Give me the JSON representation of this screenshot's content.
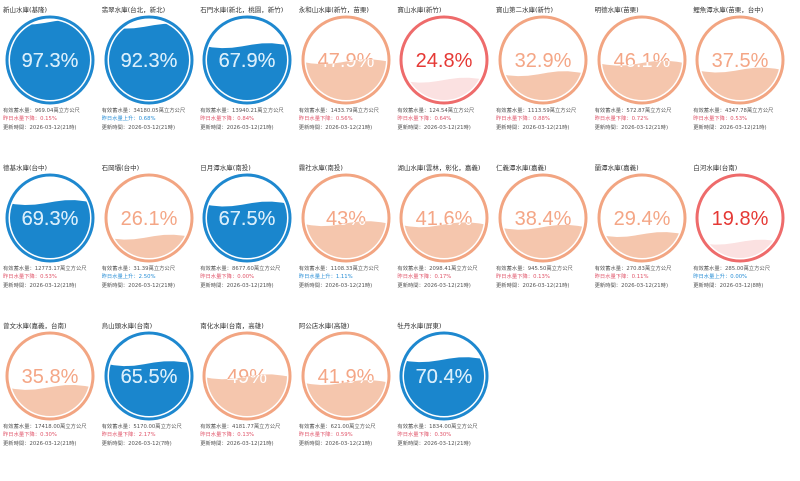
{
  "reservoirs": [
    {
      "name": "新山水庫(基隆)",
      "percent": 97.3,
      "label": "97.3%",
      "storage": "有效蓄水量：969.04萬立方公尺",
      "change": "昨日水量下降：0.15%",
      "updated": "更新時間：2026-03-12(21時)",
      "level": "blue",
      "change_dir": "down"
    },
    {
      "name": "翡翠水庫(台北，新北)",
      "percent": 92.3,
      "label": "92.3%",
      "storage": "有效蓄水量：34180.05萬立方公尺",
      "change": "昨日水量上升：0.68%",
      "updated": "更新時間：2026-03-12(21時)",
      "level": "blue",
      "change_dir": "up"
    },
    {
      "name": "石門水庫(新北，桃園，新竹)",
      "percent": 67.9,
      "label": "67.9%",
      "storage": "有效蓄水量：13940.21萬立方公尺",
      "change": "昨日水量下降：0.84%",
      "updated": "更新時間：2026-03-12(21時)",
      "level": "blue",
      "change_dir": "down"
    },
    {
      "name": "永和山水庫(新竹，苗栗)",
      "percent": 47.9,
      "label": "47.9%",
      "storage": "有效蓄水量：1433.79萬立方公尺",
      "change": "昨日水量下降：0.56%",
      "updated": "更新時間：2026-03-12(21時)",
      "level": "orange",
      "change_dir": "down"
    },
    {
      "name": "寶山水庫(新竹)",
      "percent": 24.8,
      "label": "24.8%",
      "storage": "有效蓄水量：124.54萬立方公尺",
      "change": "昨日水量下降：0.64%",
      "updated": "更新時間：2026-03-12(21時)",
      "level": "red",
      "change_dir": "down"
    },
    {
      "name": "寶山第二水庫(新竹)",
      "percent": 32.9,
      "label": "32.9%",
      "storage": "有效蓄水量：1113.59萬立方公尺",
      "change": "昨日水量下降：0.88%",
      "updated": "更新時間：2026-03-12(21時)",
      "level": "orange",
      "change_dir": "down"
    },
    {
      "name": "明德水庫(苗栗)",
      "percent": 46.1,
      "label": "46.1%",
      "storage": "有效蓄水量：572.87萬立方公尺",
      "change": "昨日水量下降：0.72%",
      "updated": "更新時間：2026-03-12(21時)",
      "level": "orange",
      "change_dir": "down"
    },
    {
      "name": "鯉魚潭水庫(苗栗，台中)",
      "percent": 37.5,
      "label": "37.5%",
      "storage": "有效蓄水量：4347.78萬立方公尺",
      "change": "昨日水量下降：0.53%",
      "updated": "更新時間：2026-03-12(21時)",
      "level": "orange",
      "change_dir": "down"
    },
    {
      "name": "德基水庫(台中)",
      "percent": 69.3,
      "label": "69.3%",
      "storage": "有效蓄水量：12773.17萬立方公尺",
      "change": "昨日水量下降：0.53%",
      "updated": "更新時間：2026-03-12(21時)",
      "level": "blue",
      "change_dir": "down"
    },
    {
      "name": "石岡壩(台中)",
      "percent": 26.1,
      "label": "26.1%",
      "storage": "有效蓄水量：31.39萬立方公尺",
      "change": "昨日水量上升：2.50%",
      "updated": "更新時間：2026-03-12(21時)",
      "level": "orange",
      "change_dir": "up"
    },
    {
      "name": "日月潭水庫(南投)",
      "percent": 67.5,
      "label": "67.5%",
      "storage": "有效蓄水量：8677.60萬立方公尺",
      "change": "昨日水量下降：0.00%",
      "updated": "更新時間：2026-03-12(21時)",
      "level": "blue",
      "change_dir": "down"
    },
    {
      "name": "霧社水庫(南投)",
      "percent": 43,
      "label": "43%",
      "storage": "有效蓄水量：1108.33萬立方公尺",
      "change": "昨日水量上升：1.11%",
      "updated": "更新時間：2026-03-12(21時)",
      "level": "orange",
      "change_dir": "up"
    },
    {
      "name": "湖山水庫(雲林，彰化，嘉義)",
      "percent": 41.6,
      "label": "41.6%",
      "storage": "有效蓄水量：2098.41萬立方公尺",
      "change": "昨日水量下降：0.17%",
      "updated": "更新時間：2026-03-12(21時)",
      "level": "orange",
      "change_dir": "down"
    },
    {
      "name": "仁義潭水庫(嘉義)",
      "percent": 38.4,
      "label": "38.4%",
      "storage": "有效蓄水量：945.50萬立方公尺",
      "change": "昨日水量下降：0.13%",
      "updated": "更新時間：2026-03-12(21時)",
      "level": "orange",
      "change_dir": "down"
    },
    {
      "name": "蘭潭水庫(嘉義)",
      "percent": 29.4,
      "label": "29.4%",
      "storage": "有效蓄水量：270.83萬立方公尺",
      "change": "昨日水量下降：0.11%",
      "updated": "更新時間：2026-03-12(21時)",
      "level": "orange",
      "change_dir": "down"
    },
    {
      "name": "白河水庫(台南)",
      "percent": 19.8,
      "label": "19.8%",
      "storage": "有效蓄水量：285.00萬立方公尺",
      "change": "昨日水量上升：0.00%",
      "updated": "更新時間：2026-03-12(8時)",
      "level": "red",
      "change_dir": "up"
    },
    {
      "name": "曾文水庫(嘉義，台南)",
      "percent": 35.8,
      "label": "35.8%",
      "storage": "有效蓄水量：17418.00萬立方公尺",
      "change": "昨日水量下降：0.30%",
      "updated": "更新時間：2026-03-12(21時)",
      "level": "orange",
      "change_dir": "down"
    },
    {
      "name": "烏山頭水庫(台南)",
      "percent": 65.5,
      "label": "65.5%",
      "storage": "有效蓄水量：5170.00萬立方公尺",
      "change": "昨日水量下降：2.17%",
      "updated": "更新時間：2026-03-12(7時)",
      "level": "blue",
      "change_dir": "down"
    },
    {
      "name": "南化水庫(台南，高雄)",
      "percent": 49,
      "label": "49%",
      "storage": "有效蓄水量：4181.77萬立方公尺",
      "change": "昨日水量下降：0.13%",
      "updated": "更新時間：2026-03-12(21時)",
      "level": "orange",
      "change_dir": "down"
    },
    {
      "name": "阿公店水庫(高雄)",
      "percent": 41.9,
      "label": "41.9%",
      "storage": "有效蓄水量：621.00萬立方公尺",
      "change": "昨日水量下降：0.59%",
      "updated": "更新時間：2026-03-12(21時)",
      "level": "orange",
      "change_dir": "down"
    },
    {
      "name": "牡丹水庫(屏東)",
      "percent": 70.4,
      "label": "70.4%",
      "storage": "有效蓄水量：1834.00萬立方公尺",
      "change": "昨日水量下降：0.30%",
      "updated": "更新時間：2026-03-12(21時)",
      "level": "blue",
      "change_dir": "down"
    }
  ],
  "colors": {
    "blue": {
      "ring": "#1e88cf",
      "fill": "#1a86cd",
      "text": "#d9eefb",
      "textUnder": "#1a86cd"
    },
    "orange": {
      "ring": "#f2a582",
      "fill": "#f5c6ad",
      "text": "#f4a686",
      "textUnder": "#ffffff"
    },
    "red": {
      "ring": "#ee6b6b",
      "fill": "#fbe1e1",
      "text": "#e53935",
      "textUnder": "#e53935"
    }
  }
}
